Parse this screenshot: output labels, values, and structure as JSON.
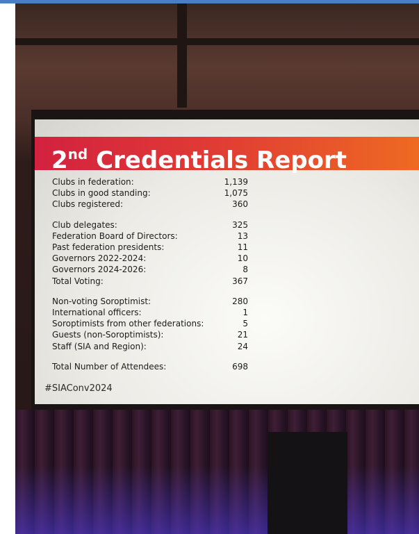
{
  "slide": {
    "title_number": "2",
    "title_suffix": "nd",
    "title_text": "Credentials Report",
    "sections": [
      {
        "rows": [
          {
            "label": "Clubs in federation:",
            "value": "1,139"
          },
          {
            "label": "Clubs in good standing:",
            "value": "1,075"
          },
          {
            "label": "Clubs registered:",
            "value": "360"
          }
        ]
      },
      {
        "rows": [
          {
            "label": "Club delegates:",
            "value": "325"
          },
          {
            "label": "Federation Board of Directors:",
            "value": "13"
          },
          {
            "label": "Past federation presidents:",
            "value": "11"
          },
          {
            "label": "Governors 2022-2024:",
            "value": "10"
          },
          {
            "label": "Governors 2024-2026:",
            "value": "8"
          },
          {
            "label": "Total Voting:",
            "value": "367"
          }
        ]
      },
      {
        "rows": [
          {
            "label": "Non-voting Soroptimist:",
            "value": "280"
          },
          {
            "label": "International officers:",
            "value": "1"
          },
          {
            "label": "Soroptimists from other federations:",
            "value": "5"
          },
          {
            "label": "Guests (non-Soroptimists):",
            "value": "21"
          },
          {
            "label": "Staff (SIA and Region):",
            "value": "24"
          }
        ]
      },
      {
        "rows": [
          {
            "label": "Total Number of Attendees:",
            "value": "698"
          }
        ]
      }
    ],
    "hashtag": "#SIAConv2024"
  }
}
